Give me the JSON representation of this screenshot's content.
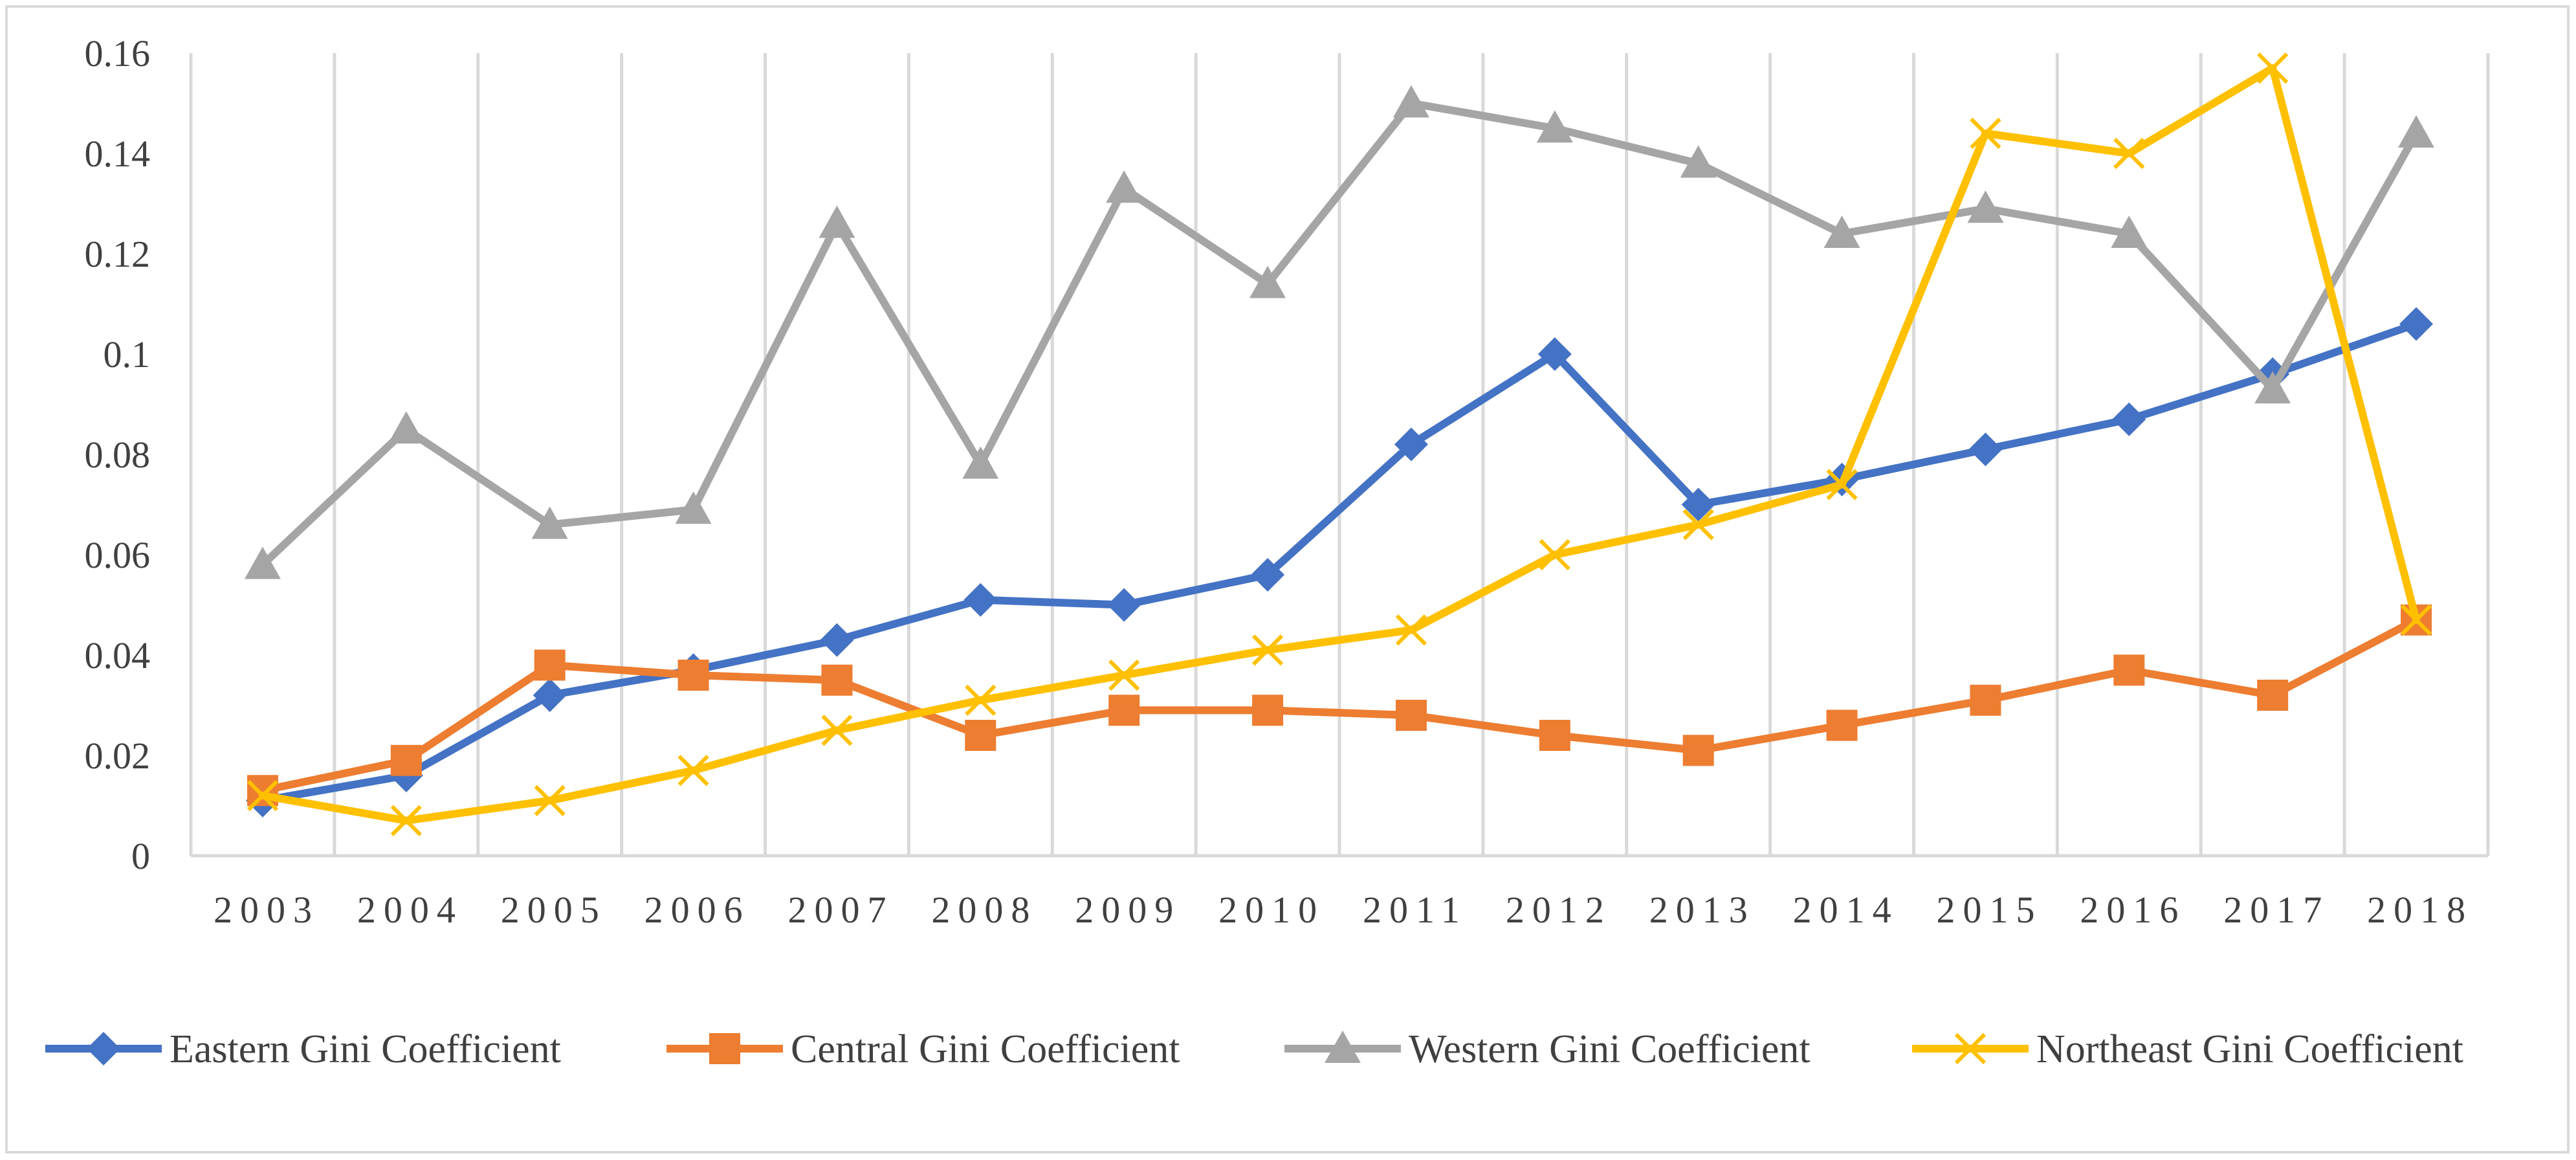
{
  "chart_data": {
    "type": "line",
    "title": "",
    "xlabel": "",
    "ylabel": "",
    "categories": [
      "2003",
      "2004",
      "2005",
      "2006",
      "2007",
      "2008",
      "2009",
      "2010",
      "2011",
      "2012",
      "2013",
      "2014",
      "2015",
      "2016",
      "2017",
      "2018"
    ],
    "ylim": [
      0,
      0.16
    ],
    "y_ticks": [
      0,
      0.02,
      0.04,
      0.06,
      0.08,
      0.1,
      0.12,
      0.14,
      0.16
    ],
    "y_tick_labels": [
      "0",
      "0.02",
      "0.04",
      "0.06",
      "0.08",
      "0.1",
      "0.12",
      "0.14",
      "0.16"
    ],
    "grid": "vertical",
    "legend_position": "bottom",
    "series": [
      {
        "name": "Eastern Gini Coefficient",
        "color": "#4472C4",
        "marker": "diamond",
        "values": [
          0.011,
          0.016,
          0.032,
          0.037,
          0.043,
          0.051,
          0.05,
          0.056,
          0.082,
          0.1,
          0.07,
          0.075,
          0.081,
          0.087,
          0.096,
          0.106
        ]
      },
      {
        "name": "Central Gini Coefficient",
        "color": "#ED7D31",
        "marker": "square",
        "values": [
          0.013,
          0.019,
          0.038,
          0.036,
          0.035,
          0.024,
          0.029,
          0.029,
          0.028,
          0.024,
          0.021,
          0.026,
          0.031,
          0.037,
          0.032,
          0.047
        ]
      },
      {
        "name": "Western Gini Coefficient",
        "color": "#A5A5A5",
        "marker": "triangle",
        "values": [
          0.058,
          0.085,
          0.066,
          0.069,
          0.126,
          0.078,
          0.133,
          0.114,
          0.15,
          0.145,
          0.138,
          0.124,
          0.129,
          0.124,
          0.093,
          0.144
        ]
      },
      {
        "name": "Northeast Gini Coefficient",
        "color": "#FFC000",
        "marker": "x",
        "values": [
          0.012,
          0.007,
          0.011,
          0.017,
          0.025,
          0.031,
          0.036,
          0.041,
          0.045,
          0.06,
          0.066,
          0.074,
          0.144,
          0.14,
          0.157,
          0.047
        ]
      }
    ]
  }
}
